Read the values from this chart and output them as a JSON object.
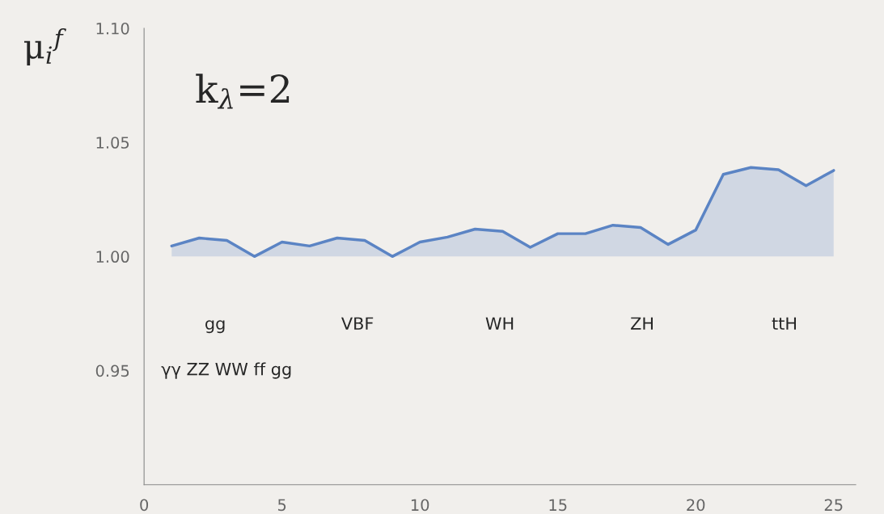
{
  "chart_data": {
    "type": "area",
    "ylabel": "μ$_{i}$$^{f}$",
    "x": [
      1,
      2,
      3,
      4,
      5,
      6,
      7,
      8,
      9,
      10,
      11,
      12,
      13,
      14,
      15,
      16,
      17,
      18,
      19,
      20,
      21,
      22,
      23,
      24,
      25
    ],
    "series": [
      {
        "color": "#5b84c4",
        "values": [
          1.0046,
          1.0081,
          1.007,
          1.0,
          1.0063,
          1.0046,
          1.0081,
          1.007,
          1.0,
          1.0063,
          1.0085,
          1.012,
          1.011,
          1.004,
          1.01,
          1.01,
          1.0137,
          1.0127,
          1.0053,
          1.0116,
          1.036,
          1.039,
          1.038,
          1.031,
          1.0377
        ]
      }
    ],
    "xlim": [
      0,
      25.8
    ],
    "ylim": [
      0.9,
      1.1
    ],
    "xticks": [
      0,
      5,
      10,
      15,
      20,
      25
    ],
    "yticks": [
      {
        "value": 0.95,
        "label": "0.95"
      },
      {
        "value": 1.0,
        "label": "1.00"
      },
      {
        "value": 1.05,
        "label": "1.05"
      },
      {
        "value": 1.1,
        "label": "1.10"
      }
    ],
    "grid": false,
    "legend": false,
    "annotations": [
      "k$_{λ}$=2",
      "gg",
      "VBF",
      "WH",
      "ZH",
      "ttH",
      "γγ ZZ WW ff gg"
    ]
  }
}
